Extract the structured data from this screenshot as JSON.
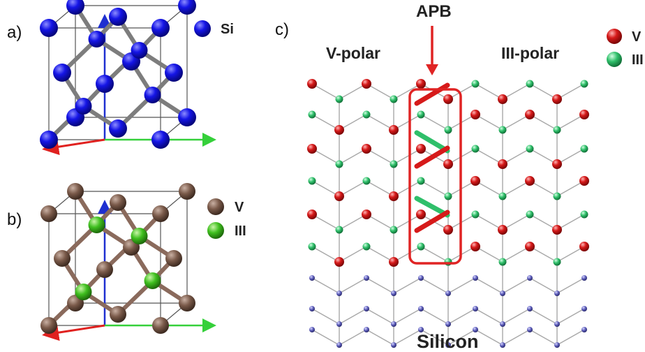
{
  "panels": {
    "a": {
      "label": "a)",
      "legend": [
        {
          "name": "Si",
          "color": "#1515e6"
        }
      ]
    },
    "b": {
      "label": "b)",
      "legend": [
        {
          "name": "V",
          "color": "#7a5a4a"
        },
        {
          "name": "III",
          "color": "#3fbf1f"
        }
      ]
    },
    "c": {
      "label": "c)",
      "apb_label": "APB",
      "left_region_label": "V-polar",
      "right_region_label": "III-polar",
      "substrate_label": "Silicon",
      "legend": [
        {
          "name": "V",
          "color": "#d61a1a"
        },
        {
          "name": "III",
          "color": "#2fbf6a"
        }
      ],
      "colors": {
        "silicon_atom": "#5b5bb8",
        "bond": "#a8a8a8",
        "apb_box": "#e02424"
      }
    }
  }
}
